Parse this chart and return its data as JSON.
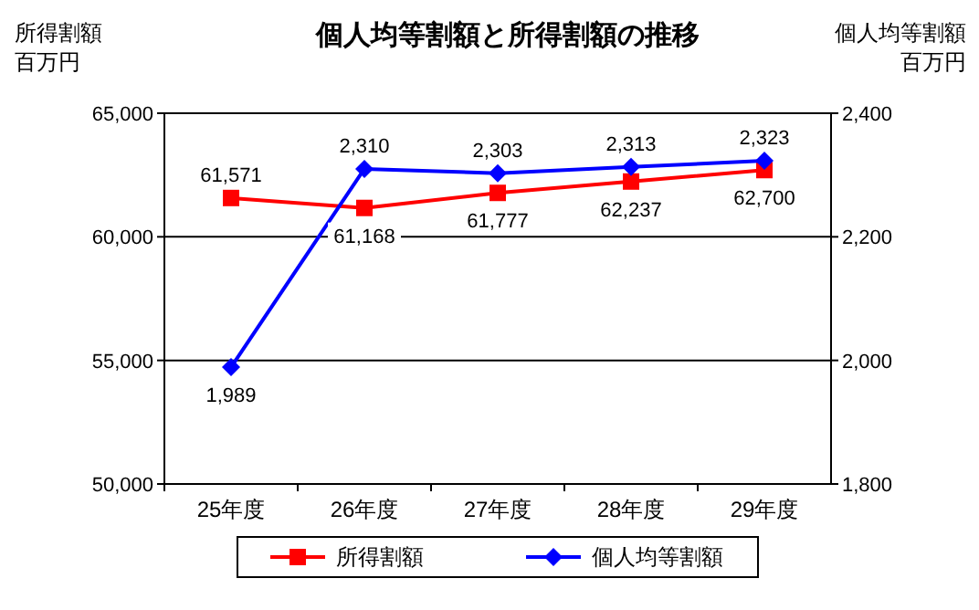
{
  "chart_data": {
    "type": "line",
    "title": "個人均等割額と所得割額の推移",
    "ylabel": "所得割額百万円",
    "y2label": "個人均等割額百万円",
    "categories": [
      "25年度",
      "26年度",
      "27年度",
      "28年度",
      "29年度"
    ],
    "series": [
      {
        "name": "所得割額",
        "color": "#ff0000",
        "marker": "square",
        "values": [
          61571,
          61168,
          61777,
          62237,
          62700
        ],
        "value_labels": [
          "61,571",
          "61,168",
          "61,777",
          "62,237",
          "62,700"
        ]
      },
      {
        "name": "個人均等割額",
        "color": "#0000ff",
        "marker": "diamond",
        "axis": "y2",
        "values": [
          1989,
          2310,
          2303,
          2313,
          2323
        ],
        "value_labels": [
          "1,989",
          "2,310",
          "2,303",
          "2,313",
          "2,323"
        ]
      }
    ],
    "ylim": [
      50000,
      65000
    ],
    "yticks": [
      {
        "value": 50000,
        "label": "50,000"
      },
      {
        "value": 55000,
        "label": "55,000"
      },
      {
        "value": 60000,
        "label": "60,000"
      },
      {
        "value": 65000,
        "label": "65,000"
      }
    ],
    "y2lim": [
      1800,
      2400
    ],
    "y2ticks": [
      {
        "value": 1800,
        "label": "1,800"
      },
      {
        "value": 2000,
        "label": "2,000"
      },
      {
        "value": 2200,
        "label": "2,200"
      },
      {
        "value": 2400,
        "label": "2,400"
      }
    ],
    "grid": "y",
    "legend": "bottom",
    "line_style": "solid"
  }
}
